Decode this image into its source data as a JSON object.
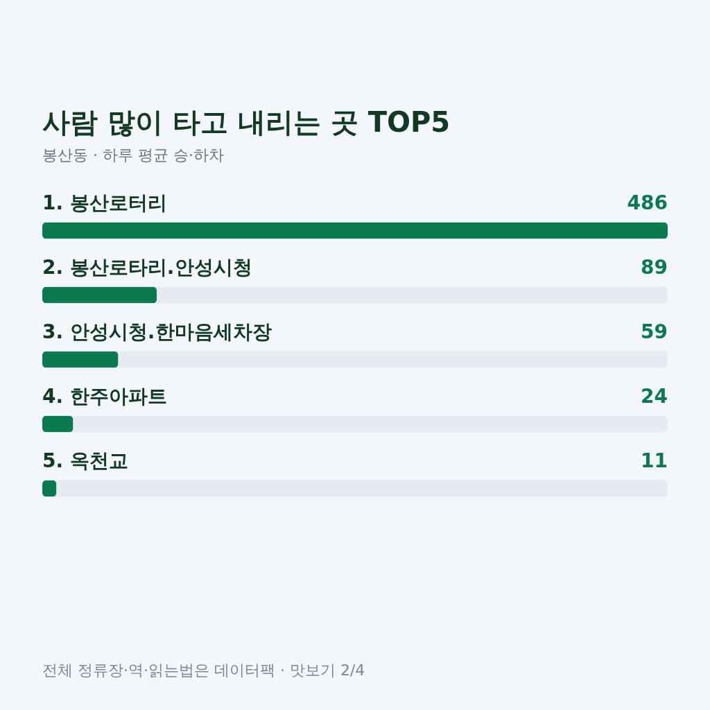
{
  "chart_data": {
    "type": "bar",
    "orientation": "horizontal",
    "title": "사람 많이 타고 내리는 곳 TOP5",
    "subtitle": "봉산동 · 하루 평균 승·하차",
    "categories": [
      "1. 봉산로터리",
      "2. 봉산로타리.안성시청",
      "3. 안성시청.한마음세차장",
      "4. 한주아파트",
      "5. 옥천교"
    ],
    "values": [
      486,
      89,
      59,
      24,
      11
    ],
    "color": "#0b7a50",
    "data_labels": true,
    "tick_labels": "y",
    "annotations": [
      "전체 정류장·역·읽는법은 데이터팩 · 맛보기 2/4"
    ]
  }
}
